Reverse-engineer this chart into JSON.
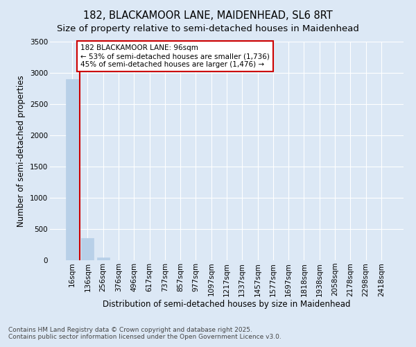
{
  "title_line1": "182, BLACKAMOOR LANE, MAIDENHEAD, SL6 8RT",
  "title_line2": "Size of property relative to semi-detached houses in Maidenhead",
  "xlabel": "Distribution of semi-detached houses by size in Maidenhead",
  "ylabel": "Number of semi-detached properties",
  "footnote": "Contains HM Land Registry data © Crown copyright and database right 2025.\nContains public sector information licensed under the Open Government Licence v3.0.",
  "categories": [
    "16sqm",
    "136sqm",
    "256sqm",
    "376sqm",
    "496sqm",
    "617sqm",
    "737sqm",
    "857sqm",
    "977sqm",
    "1097sqm",
    "1217sqm",
    "1337sqm",
    "1457sqm",
    "1577sqm",
    "1697sqm",
    "1818sqm",
    "1938sqm",
    "2058sqm",
    "2178sqm",
    "2298sqm",
    "2418sqm"
  ],
  "values": [
    2900,
    360,
    40,
    0,
    0,
    0,
    0,
    0,
    0,
    0,
    0,
    0,
    0,
    0,
    0,
    0,
    0,
    0,
    0,
    0,
    0
  ],
  "bar_color": "#b8d0e8",
  "vline_x": 0.5,
  "vline_color": "#cc0000",
  "annotation_text": "182 BLACKAMOOR LANE: 96sqm\n← 53% of semi-detached houses are smaller (1,736)\n45% of semi-detached houses are larger (1,476) →",
  "ylim": [
    0,
    3500
  ],
  "yticks": [
    0,
    500,
    1000,
    1500,
    2000,
    2500,
    3000,
    3500
  ],
  "plot_bg": "#dce8f5",
  "fig_bg": "#dce8f5",
  "grid_color": "#ffffff",
  "title_fontsize": 10.5,
  "subtitle_fontsize": 9.5,
  "axis_label_fontsize": 8.5,
  "tick_fontsize": 7.5,
  "footnote_fontsize": 6.5
}
